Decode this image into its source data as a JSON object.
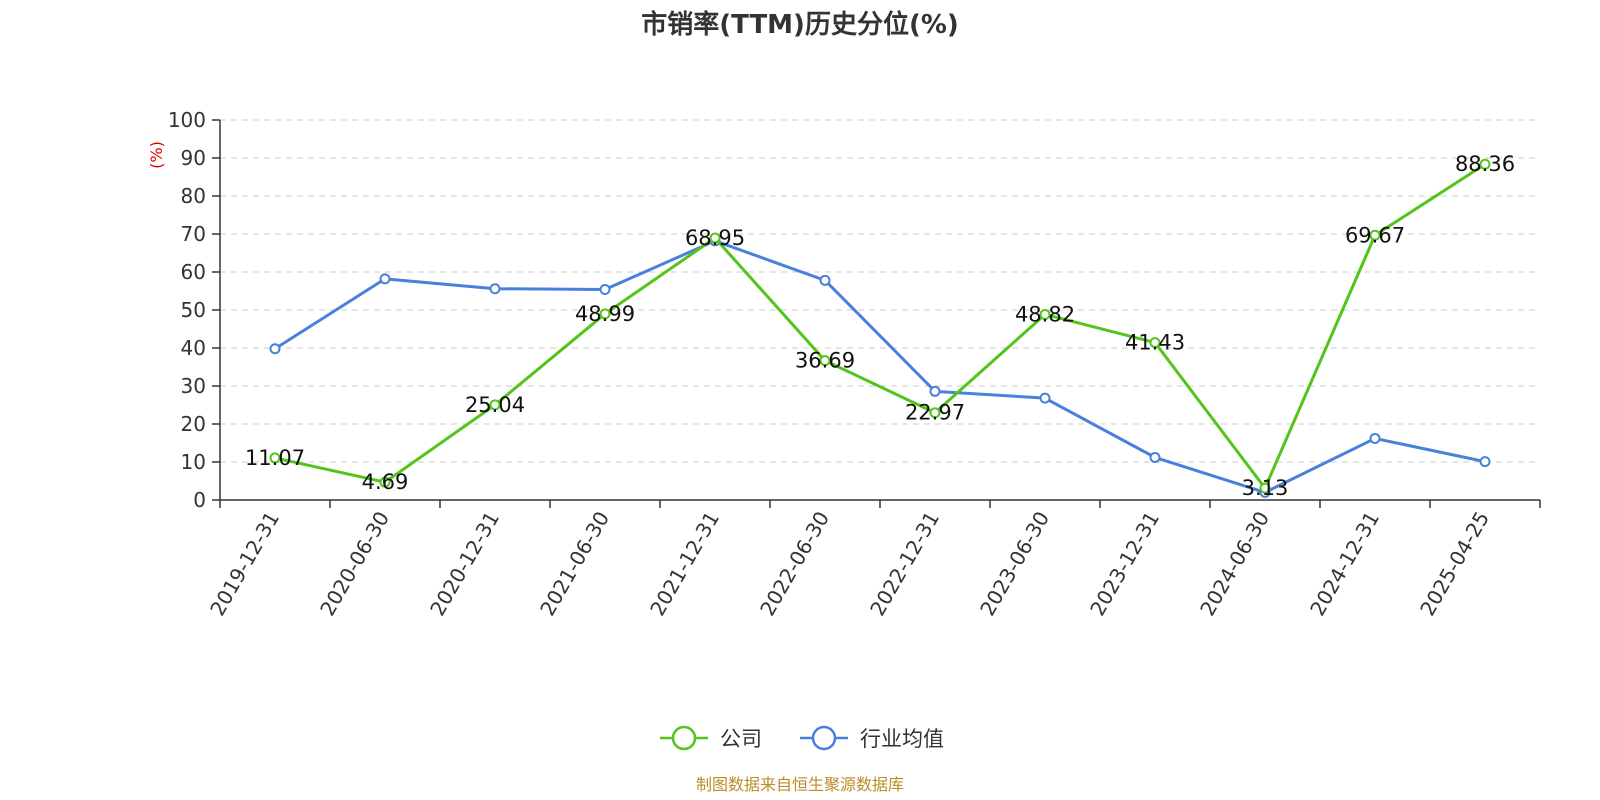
{
  "chart_data": {
    "type": "line",
    "title": "市销率(TTM)历史分位(%)",
    "y_unit": "(%)",
    "categories": [
      "2019-12-31",
      "2020-06-30",
      "2020-12-31",
      "2021-06-30",
      "2021-12-31",
      "2022-06-30",
      "2022-12-31",
      "2023-06-30",
      "2023-12-31",
      "2024-06-30",
      "2024-12-31",
      "2025-04-25"
    ],
    "series": [
      {
        "name": "公司",
        "color": "#52c41a",
        "values": [
          11.07,
          4.69,
          25.04,
          48.99,
          68.95,
          36.69,
          22.97,
          48.82,
          41.43,
          3.13,
          69.67,
          88.36
        ],
        "data_labels": true
      },
      {
        "name": "行业均值",
        "color": "#4a80dd",
        "values": [
          39.8,
          58.2,
          55.6,
          55.4,
          68.2,
          57.8,
          28.6,
          26.8,
          11.2,
          2.0,
          16.2,
          10.1
        ],
        "data_labels": false
      }
    ],
    "ylim": [
      0,
      100
    ],
    "yticks": [
      0,
      10,
      20,
      30,
      40,
      50,
      60,
      70,
      80,
      90,
      100
    ],
    "grid": true,
    "legend_position": "bottom"
  },
  "source": "制图数据来自恒生聚源数据库"
}
